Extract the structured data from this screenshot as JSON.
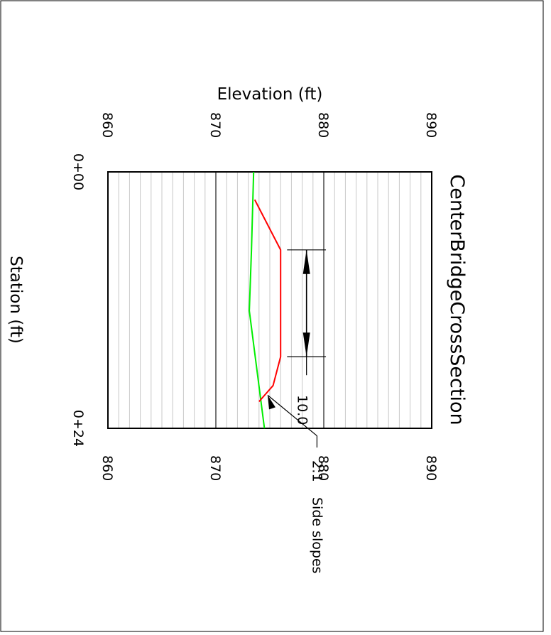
{
  "chart_data": {
    "type": "line",
    "title": "CenterBridgeCrossSection",
    "xlabel": "Station  (ft)",
    "ylabel": "Elevation  (ft)",
    "x_ticks": [
      {
        "value": 0,
        "label": "0+00"
      },
      {
        "value": 24,
        "label": "0+24"
      }
    ],
    "y_ticks": [
      {
        "value": 860,
        "label": "860"
      },
      {
        "value": 870,
        "label": "870"
      },
      {
        "value": 880,
        "label": "880"
      },
      {
        "value": 890,
        "label": "890"
      }
    ],
    "xlim": [
      0,
      24
    ],
    "ylim": [
      860,
      890
    ],
    "grid": true,
    "series": [
      {
        "color": "#00ee00",
        "x": [
          0,
          7.3,
          13,
          24
        ],
        "y": [
          873.5,
          873.3,
          873.1,
          874.5
        ]
      },
      {
        "color": "#ff0000",
        "x": [
          2.6,
          7.3,
          17.3,
          20.0,
          21.5
        ],
        "y": [
          873.6,
          876.0,
          876.0,
          875.3,
          874.0
        ]
      }
    ],
    "annotations": {
      "dimension": {
        "label": "10.0",
        "x_start": 7.3,
        "x_end": 17.3
      },
      "callout": {
        "line1": "2:1",
        "line2": "Side  slopes"
      }
    },
    "colors": {
      "grid_minor": "#c8c8c8",
      "grid_major": "#777777",
      "frame": "#000000"
    }
  }
}
